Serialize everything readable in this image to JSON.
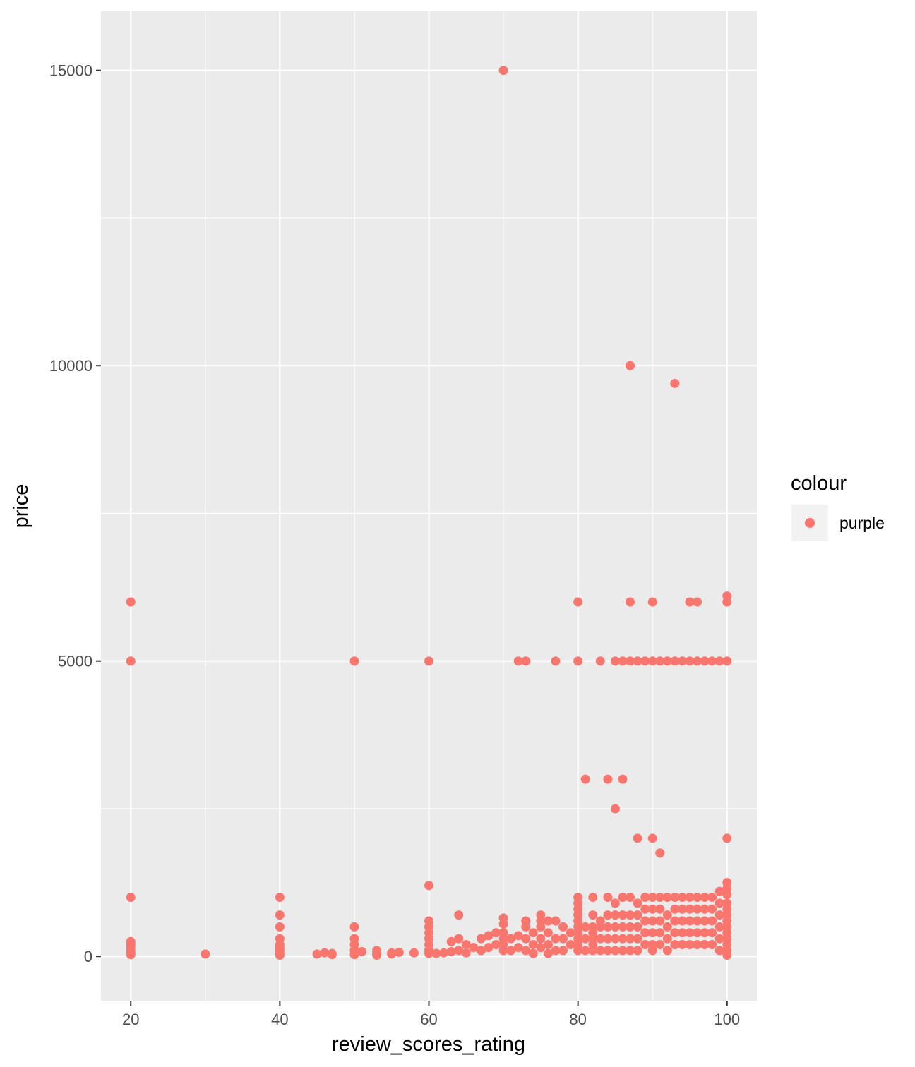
{
  "chart_data": {
    "type": "scatter",
    "xlabel": "review_scores_rating",
    "ylabel": "price",
    "xlim": [
      16,
      104
    ],
    "ylim": [
      -750,
      16000
    ],
    "x_ticks": [
      20,
      40,
      60,
      80,
      100
    ],
    "y_ticks": [
      0,
      5000,
      10000,
      15000
    ],
    "x_tick_labels": [
      "20",
      "40",
      "60",
      "80",
      "100"
    ],
    "y_tick_labels": [
      "0",
      "5000",
      "10000",
      "15000"
    ],
    "grid": true,
    "legend": {
      "title": "colour",
      "position": "right",
      "entries": [
        "purple"
      ]
    },
    "point_color": "#F8766D",
    "panel_background": "#EBEBEB",
    "series": [
      {
        "name": "purple",
        "points": [
          [
            20,
            6000
          ],
          [
            20,
            5000
          ],
          [
            20,
            1000
          ],
          [
            20,
            250
          ],
          [
            20,
            200
          ],
          [
            20,
            150
          ],
          [
            20,
            100
          ],
          [
            20,
            60
          ],
          [
            20,
            30
          ],
          [
            30,
            40
          ],
          [
            40,
            1000
          ],
          [
            40,
            700
          ],
          [
            40,
            500
          ],
          [
            40,
            300
          ],
          [
            40,
            200
          ],
          [
            40,
            150
          ],
          [
            40,
            100
          ],
          [
            40,
            50
          ],
          [
            40,
            20
          ],
          [
            45,
            40
          ],
          [
            46,
            60
          ],
          [
            47,
            30
          ],
          [
            47,
            50
          ],
          [
            50,
            5000
          ],
          [
            50,
            500
          ],
          [
            50,
            300
          ],
          [
            50,
            200
          ],
          [
            50,
            100
          ],
          [
            50,
            30
          ],
          [
            51,
            80
          ],
          [
            53,
            100
          ],
          [
            53,
            50
          ],
          [
            53,
            20
          ],
          [
            55,
            60
          ],
          [
            55,
            40
          ],
          [
            56,
            70
          ],
          [
            58,
            60
          ],
          [
            60,
            5000
          ],
          [
            60,
            1200
          ],
          [
            60,
            600
          ],
          [
            60,
            500
          ],
          [
            60,
            400
          ],
          [
            60,
            300
          ],
          [
            60,
            200
          ],
          [
            60,
            100
          ],
          [
            60,
            50
          ],
          [
            61,
            50
          ],
          [
            62,
            60
          ],
          [
            63,
            250
          ],
          [
            63,
            80
          ],
          [
            64,
            700
          ],
          [
            64,
            300
          ],
          [
            64,
            100
          ],
          [
            65,
            200
          ],
          [
            65,
            60
          ],
          [
            66,
            150
          ],
          [
            67,
            300
          ],
          [
            67,
            100
          ],
          [
            68,
            350
          ],
          [
            68,
            150
          ],
          [
            69,
            400
          ],
          [
            69,
            200
          ],
          [
            70,
            15000
          ],
          [
            70,
            650
          ],
          [
            70,
            550
          ],
          [
            70,
            400
          ],
          [
            70,
            300
          ],
          [
            70,
            200
          ],
          [
            70,
            100
          ],
          [
            71,
            300
          ],
          [
            71,
            100
          ],
          [
            72,
            5000
          ],
          [
            72,
            350
          ],
          [
            72,
            150
          ],
          [
            73,
            5000
          ],
          [
            73,
            600
          ],
          [
            73,
            500
          ],
          [
            73,
            300
          ],
          [
            73,
            100
          ],
          [
            74,
            400
          ],
          [
            74,
            200
          ],
          [
            74,
            50
          ],
          [
            75,
            700
          ],
          [
            75,
            600
          ],
          [
            75,
            500
          ],
          [
            75,
            300
          ],
          [
            75,
            150
          ],
          [
            76,
            600
          ],
          [
            76,
            400
          ],
          [
            76,
            200
          ],
          [
            76,
            50
          ],
          [
            77,
            5000
          ],
          [
            77,
            600
          ],
          [
            77,
            300
          ],
          [
            77,
            100
          ],
          [
            78,
            500
          ],
          [
            78,
            300
          ],
          [
            78,
            100
          ],
          [
            79,
            400
          ],
          [
            79,
            200
          ],
          [
            80,
            6000
          ],
          [
            80,
            5000
          ],
          [
            80,
            1000
          ],
          [
            80,
            900
          ],
          [
            80,
            800
          ],
          [
            80,
            700
          ],
          [
            80,
            600
          ],
          [
            80,
            500
          ],
          [
            80,
            400
          ],
          [
            80,
            300
          ],
          [
            80,
            200
          ],
          [
            80,
            100
          ],
          [
            81,
            3000
          ],
          [
            81,
            500
          ],
          [
            81,
            300
          ],
          [
            81,
            100
          ],
          [
            82,
            1000
          ],
          [
            82,
            700
          ],
          [
            82,
            500
          ],
          [
            82,
            400
          ],
          [
            82,
            300
          ],
          [
            82,
            200
          ],
          [
            82,
            100
          ],
          [
            83,
            5000
          ],
          [
            83,
            600
          ],
          [
            83,
            500
          ],
          [
            83,
            300
          ],
          [
            83,
            100
          ],
          [
            84,
            3000
          ],
          [
            84,
            1000
          ],
          [
            84,
            700
          ],
          [
            84,
            500
          ],
          [
            84,
            300
          ],
          [
            84,
            100
          ],
          [
            85,
            5000
          ],
          [
            85,
            2500
          ],
          [
            85,
            900
          ],
          [
            85,
            700
          ],
          [
            85,
            500
          ],
          [
            85,
            300
          ],
          [
            85,
            100
          ],
          [
            86,
            5000
          ],
          [
            86,
            3000
          ],
          [
            86,
            1000
          ],
          [
            86,
            700
          ],
          [
            86,
            500
          ],
          [
            86,
            300
          ],
          [
            86,
            100
          ],
          [
            87,
            10000
          ],
          [
            87,
            6000
          ],
          [
            87,
            5000
          ],
          [
            87,
            1000
          ],
          [
            87,
            700
          ],
          [
            87,
            500
          ],
          [
            87,
            300
          ],
          [
            87,
            100
          ],
          [
            88,
            5000
          ],
          [
            88,
            2000
          ],
          [
            88,
            900
          ],
          [
            88,
            700
          ],
          [
            88,
            500
          ],
          [
            88,
            300
          ],
          [
            88,
            100
          ],
          [
            89,
            5000
          ],
          [
            89,
            1000
          ],
          [
            89,
            800
          ],
          [
            89,
            600
          ],
          [
            89,
            400
          ],
          [
            89,
            200
          ],
          [
            90,
            6000
          ],
          [
            90,
            5000
          ],
          [
            90,
            2000
          ],
          [
            90,
            1000
          ],
          [
            90,
            800
          ],
          [
            90,
            600
          ],
          [
            90,
            400
          ],
          [
            90,
            200
          ],
          [
            90,
            100
          ],
          [
            91,
            5000
          ],
          [
            91,
            1750
          ],
          [
            91,
            1000
          ],
          [
            91,
            800
          ],
          [
            91,
            600
          ],
          [
            91,
            400
          ],
          [
            91,
            200
          ],
          [
            92,
            5000
          ],
          [
            92,
            1000
          ],
          [
            92,
            700
          ],
          [
            92,
            500
          ],
          [
            92,
            300
          ],
          [
            92,
            100
          ],
          [
            93,
            9700
          ],
          [
            93,
            5000
          ],
          [
            93,
            1000
          ],
          [
            93,
            800
          ],
          [
            93,
            600
          ],
          [
            93,
            400
          ],
          [
            93,
            200
          ],
          [
            94,
            5000
          ],
          [
            94,
            1000
          ],
          [
            94,
            800
          ],
          [
            94,
            600
          ],
          [
            94,
            400
          ],
          [
            94,
            200
          ],
          [
            95,
            6000
          ],
          [
            95,
            5000
          ],
          [
            95,
            1000
          ],
          [
            95,
            800
          ],
          [
            95,
            600
          ],
          [
            95,
            400
          ],
          [
            95,
            200
          ],
          [
            96,
            6000
          ],
          [
            96,
            5000
          ],
          [
            96,
            1000
          ],
          [
            96,
            800
          ],
          [
            96,
            600
          ],
          [
            96,
            400
          ],
          [
            96,
            200
          ],
          [
            97,
            5000
          ],
          [
            97,
            1000
          ],
          [
            97,
            800
          ],
          [
            97,
            600
          ],
          [
            97,
            400
          ],
          [
            97,
            200
          ],
          [
            98,
            5000
          ],
          [
            98,
            1000
          ],
          [
            98,
            800
          ],
          [
            98,
            600
          ],
          [
            98,
            400
          ],
          [
            98,
            200
          ],
          [
            99,
            5000
          ],
          [
            99,
            1100
          ],
          [
            99,
            900
          ],
          [
            99,
            700
          ],
          [
            99,
            500
          ],
          [
            99,
            300
          ],
          [
            99,
            100
          ],
          [
            100,
            6100
          ],
          [
            100,
            6000
          ],
          [
            100,
            5000
          ],
          [
            100,
            2000
          ],
          [
            100,
            1250
          ],
          [
            100,
            1150
          ],
          [
            100,
            1050
          ],
          [
            100,
            900
          ],
          [
            100,
            800
          ],
          [
            100,
            700
          ],
          [
            100,
            600
          ],
          [
            100,
            500
          ],
          [
            100,
            400
          ],
          [
            100,
            300
          ],
          [
            100,
            200
          ],
          [
            100,
            100
          ],
          [
            100,
            20
          ]
        ]
      }
    ]
  }
}
